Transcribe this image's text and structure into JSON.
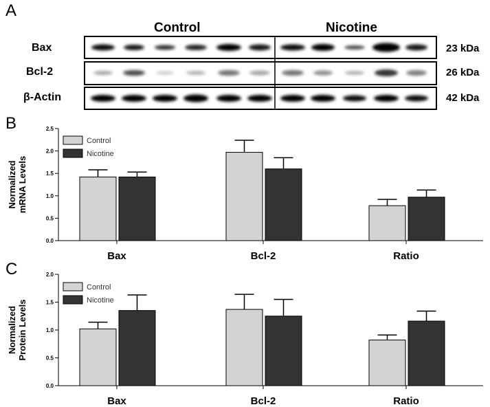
{
  "panels": {
    "a": "A",
    "b": "B",
    "c": "C"
  },
  "western_blot": {
    "groups": [
      "Control",
      "Nicotine"
    ],
    "rows": [
      {
        "label": "Bax",
        "size": "23 kDa"
      },
      {
        "label": "Bcl-2",
        "size": "26 kDa"
      },
      {
        "label": "β-Actin",
        "size": "42 kDa"
      }
    ],
    "lanes_per_group": [
      6,
      5
    ]
  },
  "chart_data": [
    {
      "type": "bar",
      "categories": [
        "Bax",
        "Bcl-2",
        "Ratio"
      ],
      "ylabel": "Normalized mRNA Levels",
      "ylim": [
        0,
        2.5
      ],
      "yticks": [
        "0.0",
        "0.5",
        "1.0",
        "1.5",
        "2.0",
        "2.5"
      ],
      "legend": "top-left",
      "series": [
        {
          "name": "Control",
          "values": [
            1.42,
            1.97,
            0.78
          ],
          "errors": [
            0.16,
            0.27,
            0.14
          ],
          "color": "#d3d3d3"
        },
        {
          "name": "Nicotine",
          "values": [
            1.42,
            1.6,
            0.97
          ],
          "errors": [
            0.11,
            0.25,
            0.16
          ],
          "color": "#333333"
        }
      ]
    },
    {
      "type": "bar",
      "categories": [
        "Bax",
        "Bcl-2",
        "Ratio"
      ],
      "ylabel": "Normalized Protein Levels",
      "ylim": [
        0,
        2.0
      ],
      "yticks": [
        "0.0",
        "0.5",
        "1.0",
        "1.5",
        "2.0"
      ],
      "legend": "top-left",
      "series": [
        {
          "name": "Control",
          "values": [
            1.02,
            1.37,
            0.82
          ],
          "errors": [
            0.12,
            0.27,
            0.09
          ],
          "color": "#d3d3d3"
        },
        {
          "name": "Nicotine",
          "values": [
            1.35,
            1.25,
            1.16
          ],
          "errors": [
            0.28,
            0.3,
            0.18
          ],
          "color": "#333333"
        }
      ]
    }
  ]
}
